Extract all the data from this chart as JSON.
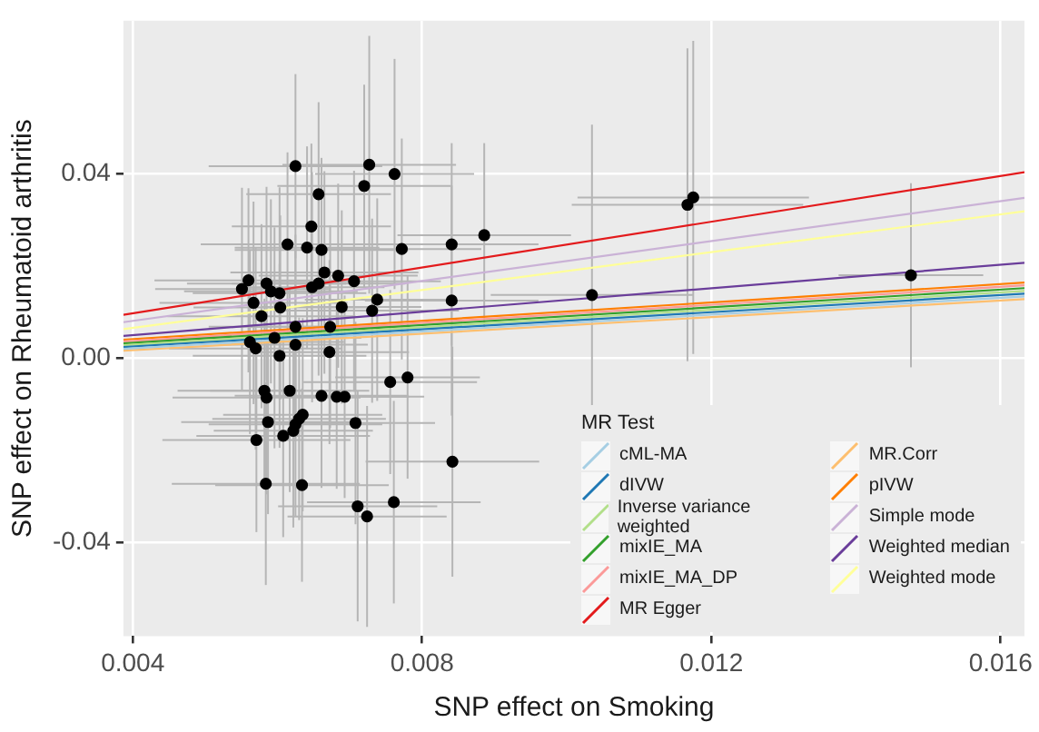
{
  "chart_data": {
    "type": "scatter",
    "xlabel": "SNP effect on Smoking",
    "ylabel": "SNP effect on Rheumatoid arthritis",
    "legend_title": "MR Test",
    "legend": "bottom right",
    "grid": true,
    "marker": "none",
    "xlim": [
      0.00387,
      0.01633
    ],
    "ylim": [
      -0.0604,
      0.0733
    ],
    "xticks": [
      0.004,
      0.008,
      0.012,
      0.016
    ],
    "yticks": [
      {
        "value": -0.04,
        "label": "-0.04"
      },
      {
        "value": 0,
        "label": "0.00"
      },
      0.04
    ],
    "series": [
      {
        "marker": "circle",
        "color": "#000000",
        "x": [
          0.00625,
          0.00727,
          0.00762,
          0.0072,
          0.00657,
          0.00647,
          0.00614,
          0.00641,
          0.00661,
          0.00772,
          0.00841,
          0.00886,
          0.00665,
          0.00684,
          0.00706,
          0.0056,
          0.00551,
          0.00585,
          0.00591,
          0.00603,
          0.00648,
          0.00657,
          0.00567,
          0.00604,
          0.00689,
          0.00731,
          0.00738,
          0.00841,
          0.00578,
          0.00625,
          0.00673,
          0.00596,
          0.00562,
          0.0057,
          0.00625,
          0.00603,
          0.00672,
          0.00582,
          0.00617,
          0.00585,
          0.00661,
          0.00682,
          0.00693,
          0.00756,
          0.0078,
          0.00587,
          0.00635,
          0.0063,
          0.00625,
          0.00708,
          0.00571,
          0.00608,
          0.00622,
          0.00842,
          0.00584,
          0.00634,
          0.00711,
          0.00761,
          0.00724,
          0.01035,
          0.01167,
          0.01175,
          0.01476
        ],
        "values": [
          0.0417,
          0.042,
          0.04,
          0.0374,
          0.0356,
          0.0286,
          0.0247,
          0.024,
          0.0235,
          0.0237,
          0.0247,
          0.0267,
          0.0186,
          0.0179,
          0.0167,
          0.0169,
          0.015,
          0.0162,
          0.0145,
          0.0141,
          0.0154,
          0.0162,
          0.012,
          0.011,
          0.0111,
          0.0103,
          0.0127,
          0.0125,
          0.0091,
          0.0068,
          0.0068,
          0.0044,
          0.0035,
          0.0021,
          0.0029,
          0.0005,
          0.0013,
          -0.0071,
          -0.0071,
          -0.0086,
          -0.0082,
          -0.0084,
          -0.0084,
          -0.0052,
          -0.0042,
          -0.0139,
          -0.0123,
          -0.0132,
          -0.0144,
          -0.0141,
          -0.0178,
          -0.0169,
          -0.0158,
          -0.0225,
          -0.0273,
          -0.0276,
          -0.0322,
          -0.0313,
          -0.0344,
          0.0137,
          0.0333,
          0.0349,
          0.018
        ],
        "errors": [
          0.02,
          0.028,
          0.025,
          0.022,
          0.02,
          0.018,
          0.02,
          0.022,
          0.02,
          0.024,
          0.022,
          0.02,
          0.022,
          0.02,
          0.024,
          0.02,
          0.022,
          0.021,
          0.02,
          0.023,
          0.025,
          0.02,
          0.022,
          0.02,
          0.021,
          0.02,
          0.022,
          0.025,
          0.02,
          0.02,
          0.022,
          0.024,
          0.02,
          0.022,
          0.021,
          0.02,
          0.02,
          0.02,
          0.022,
          0.021,
          0.02,
          0.02,
          0.022,
          0.02,
          0.022,
          0.02,
          0.021,
          0.022,
          0.02,
          0.022,
          0.02,
          0.022,
          0.021,
          0.025,
          0.022,
          0.021,
          0.025,
          0.022,
          0.024,
          0.037,
          0.034,
          0.034,
          0.02
        ],
        "xerrors": [
          0.0012,
          0.0012,
          0.0011,
          0.0012,
          0.001,
          0.0011,
          0.0012,
          0.001,
          0.0012,
          0.0011,
          0.0012,
          0.0012,
          0.0013,
          0.0011,
          0.0012,
          0.0013,
          0.0012,
          0.0011,
          0.0012,
          0.0012,
          0.001,
          0.0012,
          0.0013,
          0.0012,
          0.0011,
          0.0012,
          0.001,
          0.0012,
          0.0013,
          0.0012,
          0.0011,
          0.0012,
          0.0013,
          0.0012,
          0.001,
          0.0012,
          0.0011,
          0.0012,
          0.0011,
          0.0013,
          0.0012,
          0.001,
          0.0011,
          0.0012,
          0.001,
          0.0012,
          0.0011,
          0.0012,
          0.0012,
          0.0011,
          0.0013,
          0.0012,
          0.0011,
          0.0012,
          0.0013,
          0.0012,
          0.0011,
          0.0012,
          0.0011,
          0.0014,
          0.0016,
          0.0016,
          0.001
        ]
      },
      {
        "type": "line",
        "name": "cML-MA",
        "color": "#a6cee3",
        "x": [
          0.00387,
          0.01633
        ],
        "values": [
          0.002,
          0.0134
        ]
      },
      {
        "type": "line",
        "name": "dIVW",
        "color": "#1f78b4",
        "x": [
          0.00387,
          0.01633
        ],
        "values": [
          0.0024,
          0.014
        ]
      },
      {
        "type": "line",
        "name": "Inverse variance weighted",
        "color": "#b2df8a",
        "x": [
          0.00387,
          0.01633
        ],
        "values": [
          0.0028,
          0.0146
        ]
      },
      {
        "type": "line",
        "name": "mixIE_MA",
        "color": "#33a02c",
        "x": [
          0.00387,
          0.01633
        ],
        "values": [
          0.0032,
          0.0152
        ]
      },
      {
        "type": "line",
        "name": "mixIE_MA_DP",
        "color": "#fb9a99",
        "x": [
          0.00387,
          0.01633
        ],
        "values": [
          0.0036,
          0.0158
        ]
      },
      {
        "type": "line",
        "name": "MR Egger",
        "color": "#e31a1c",
        "x": [
          0.00387,
          0.01633
        ],
        "values": [
          0.0094,
          0.0404
        ]
      },
      {
        "type": "line",
        "name": "MR.Corr",
        "color": "#fdbf6f",
        "x": [
          0.00387,
          0.01633
        ],
        "values": [
          0.0016,
          0.0128
        ]
      },
      {
        "type": "line",
        "name": "pIVW",
        "color": "#ff7f00",
        "x": [
          0.00387,
          0.01633
        ],
        "values": [
          0.004,
          0.0164
        ]
      },
      {
        "type": "line",
        "name": "Simple mode",
        "color": "#cab2d6",
        "x": [
          0.00387,
          0.01633
        ],
        "values": [
          0.0078,
          0.0348
        ]
      },
      {
        "type": "line",
        "name": "Weighted median",
        "color": "#6a3d9a",
        "x": [
          0.00387,
          0.01633
        ],
        "values": [
          0.0048,
          0.0207
        ]
      },
      {
        "type": "line",
        "name": "Weighted mode",
        "color": "#ffff99",
        "x": [
          0.00387,
          0.01633
        ],
        "values": [
          0.0063,
          0.0319
        ]
      }
    ]
  }
}
